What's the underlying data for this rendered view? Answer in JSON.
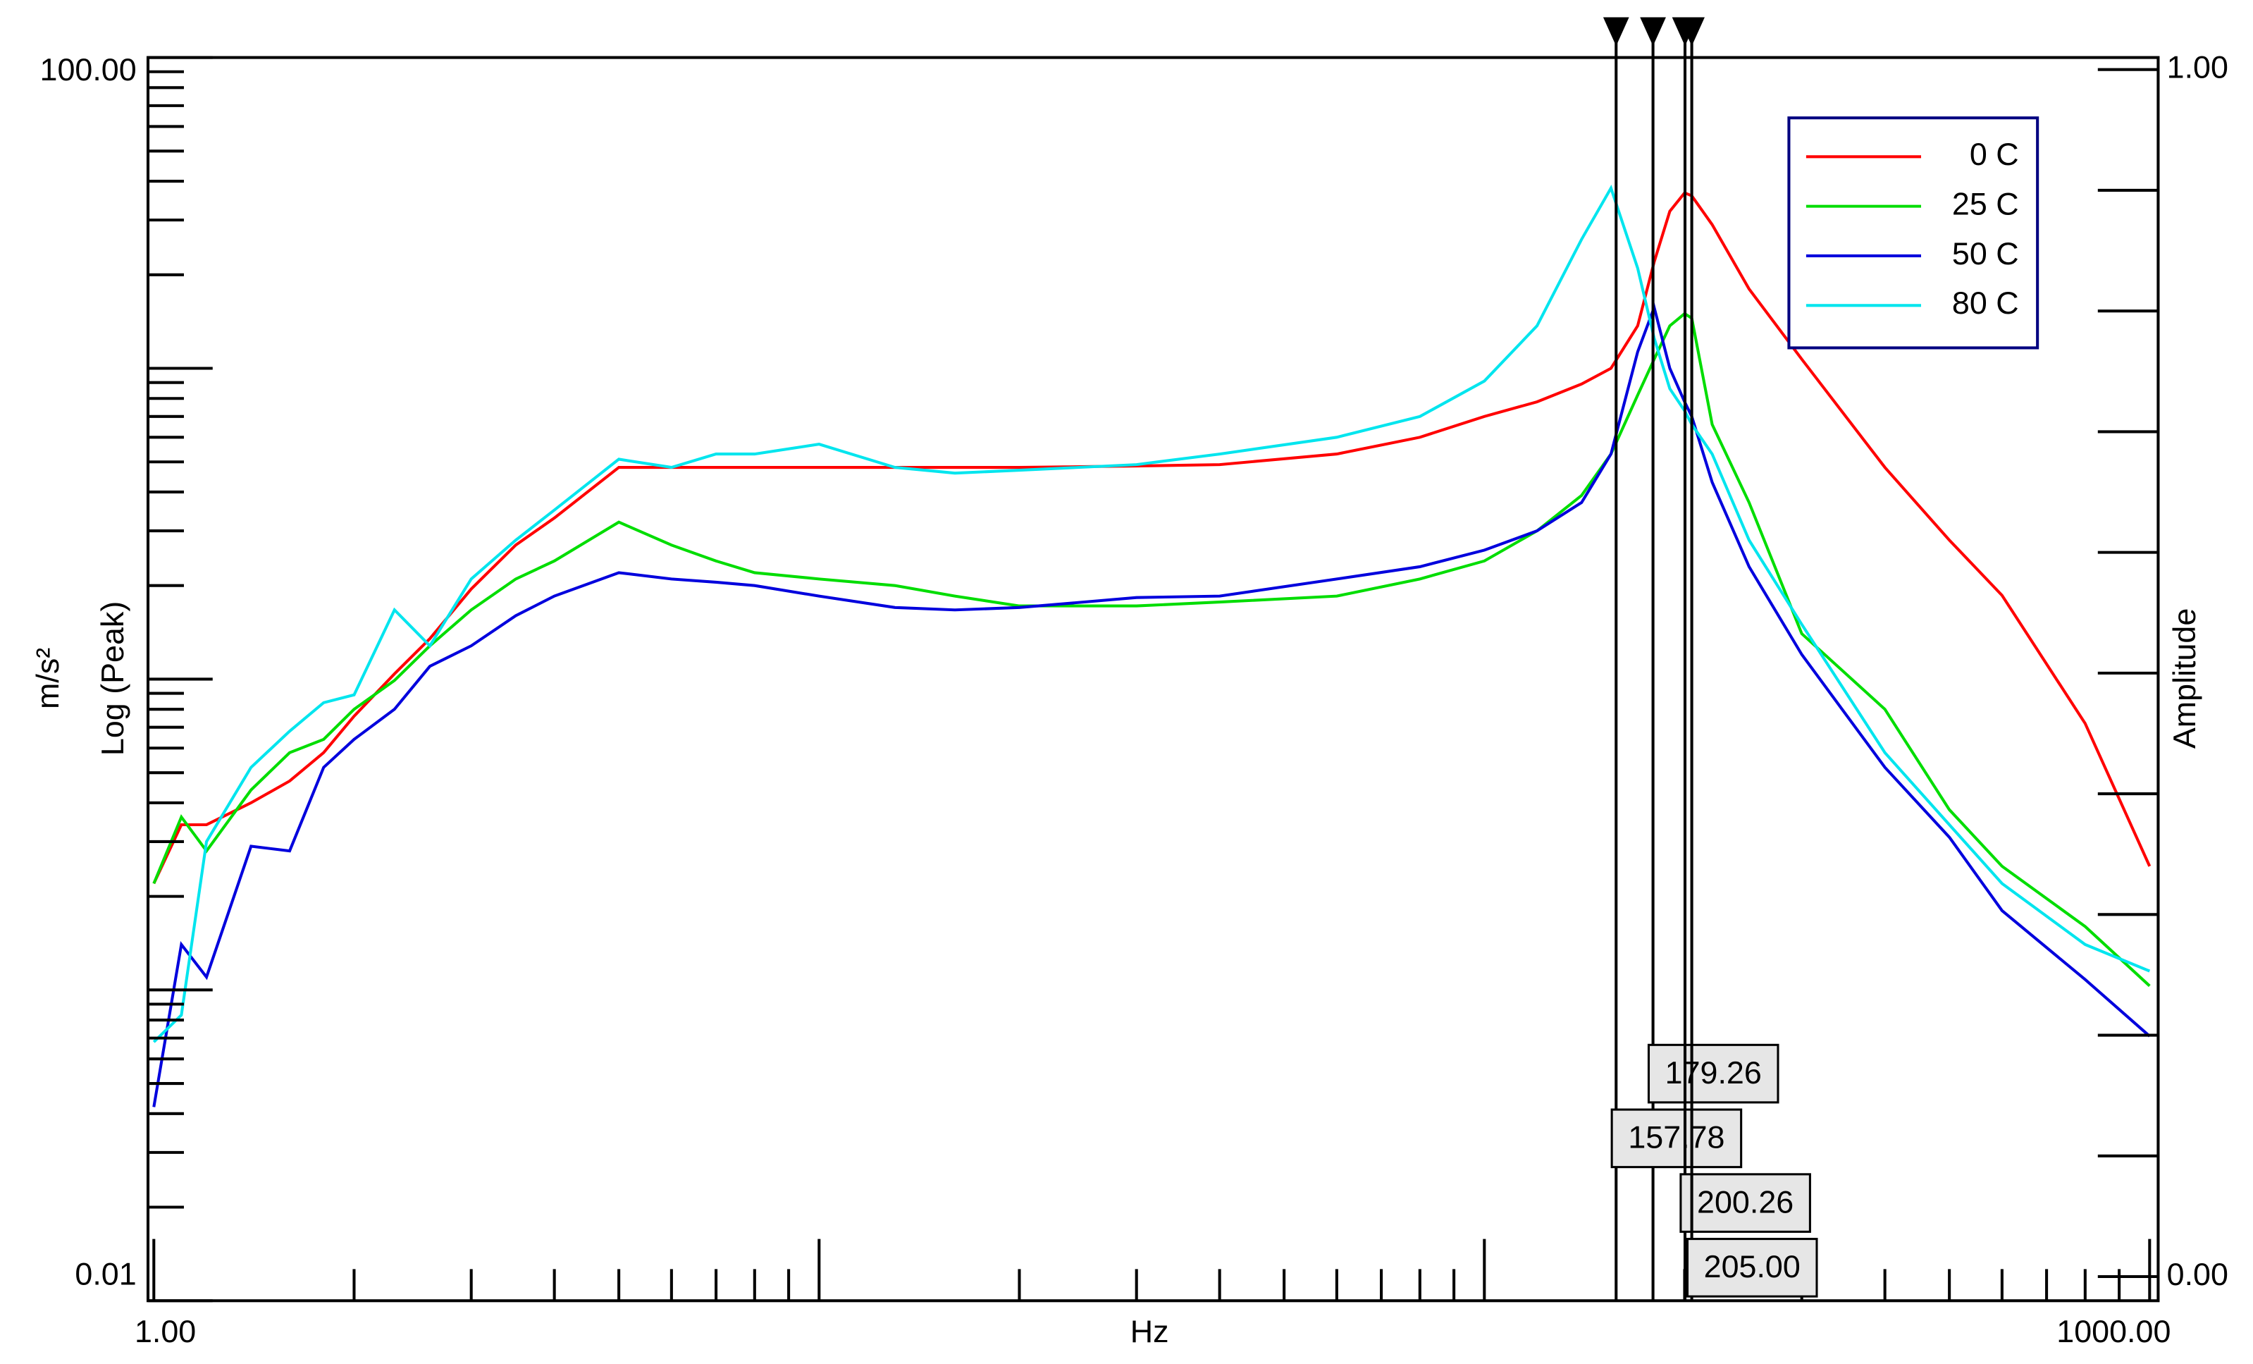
{
  "chart_data": {
    "type": "line",
    "x_label": "Hz",
    "y_label": "Log (Peak)",
    "y_unit": "m/s²",
    "y2_label": "Amplitude",
    "log_x": true,
    "log_y": true,
    "xlim": [
      0.98,
      1030
    ],
    "ylim": [
      0.01,
      100
    ],
    "y2lim": [
      -0.02,
      1.01
    ],
    "xticks": [
      {
        "value": 1,
        "label": "1.00"
      },
      {
        "value": 1000,
        "label": "1000.00"
      }
    ],
    "xmajorticks": [
      10,
      100
    ],
    "xminorticks": [
      2,
      3,
      4,
      5,
      6,
      7,
      8,
      9,
      20,
      30,
      40,
      50,
      60,
      70,
      80,
      90,
      200,
      300,
      400,
      500,
      600,
      700,
      800,
      900
    ],
    "yticks": [
      {
        "value": 0.01,
        "label": "0.01"
      },
      {
        "value": 100,
        "label": "100.00"
      }
    ],
    "ymajorticks": [
      0.1,
      1,
      10
    ],
    "yminorticks": [
      0.02,
      0.03,
      0.04,
      0.05,
      0.06,
      0.07,
      0.08,
      0.09,
      0.2,
      0.3,
      0.4,
      0.5,
      0.6,
      0.7,
      0.8,
      0.9,
      2,
      3,
      4,
      5,
      6,
      7,
      8,
      9,
      20,
      30,
      40,
      50,
      60,
      70,
      80,
      90
    ],
    "y2ticks": [
      {
        "value": 0,
        "label": "0.00"
      },
      {
        "value": 1,
        "label": "1.00"
      }
    ],
    "y2minorticks": [
      0.1,
      0.2,
      0.3,
      0.4,
      0.5,
      0.6,
      0.7,
      0.8,
      0.9
    ],
    "legend": "upper right",
    "x": [
      1,
      1.1,
      1.2,
      1.4,
      1.6,
      1.8,
      2,
      2.3,
      2.6,
      3,
      3.5,
      4,
      5,
      6,
      7,
      8,
      10,
      13,
      16,
      20,
      30,
      40,
      60,
      80,
      100,
      120,
      140,
      155,
      170,
      180,
      190,
      200,
      205,
      220,
      250,
      300,
      400,
      500,
      600,
      800,
      1000
    ],
    "series": [
      {
        "name": "0 C",
        "color": "#ff0000",
        "values": [
          0.22,
          0.34,
          0.34,
          0.4,
          0.47,
          0.58,
          0.76,
          1.04,
          1.35,
          1.95,
          2.7,
          3.3,
          4.8,
          4.8,
          4.8,
          4.8,
          4.8,
          4.8,
          4.8,
          4.8,
          4.85,
          4.9,
          5.3,
          6.0,
          7.0,
          7.8,
          8.9,
          10,
          13.7,
          22,
          32,
          36.7,
          35.9,
          29,
          18,
          10.7,
          4.8,
          2.8,
          1.86,
          0.72,
          0.25
        ]
      },
      {
        "name": "25 C",
        "color": "#00dd00",
        "values": [
          0.22,
          0.36,
          0.28,
          0.44,
          0.58,
          0.64,
          0.8,
          0.99,
          1.28,
          1.67,
          2.1,
          2.4,
          3.2,
          2.7,
          2.4,
          2.2,
          2.1,
          2.0,
          1.85,
          1.72,
          1.72,
          1.77,
          1.85,
          2.1,
          2.4,
          3.0,
          3.9,
          5.3,
          8.2,
          10.7,
          13.7,
          15,
          14.5,
          6.6,
          3.7,
          1.4,
          0.8,
          0.38,
          0.25,
          0.16,
          0.103
        ]
      },
      {
        "name": "50 C",
        "color": "#0000dd",
        "values": [
          0.042,
          0.14,
          0.11,
          0.29,
          0.28,
          0.52,
          0.64,
          0.8,
          1.1,
          1.28,
          1.6,
          1.85,
          2.2,
          2.1,
          2.05,
          2.0,
          1.85,
          1.7,
          1.67,
          1.7,
          1.83,
          1.85,
          2.1,
          2.3,
          2.6,
          3.0,
          3.7,
          5.3,
          11.3,
          15.7,
          10,
          7.8,
          7.0,
          4.3,
          2.3,
          1.2,
          0.52,
          0.31,
          0.18,
          0.108,
          0.071
        ]
      },
      {
        "name": "80 C",
        "color": "#00e5ee",
        "values": [
          0.068,
          0.083,
          0.3,
          0.52,
          0.68,
          0.84,
          0.89,
          1.67,
          1.28,
          2.1,
          2.8,
          3.5,
          5.1,
          4.8,
          5.3,
          5.3,
          5.7,
          4.8,
          4.6,
          4.7,
          4.9,
          5.3,
          6.0,
          7.0,
          9.1,
          13.7,
          26,
          38,
          21,
          12.5,
          8.6,
          7.3,
          6.6,
          5.3,
          2.8,
          1.5,
          0.58,
          0.34,
          0.22,
          0.14,
          0.115
        ]
      }
    ],
    "markers": [
      {
        "value": 179.26,
        "label": "179.26"
      },
      {
        "value": 157.78,
        "label": "157.78"
      },
      {
        "value": 200.26,
        "label": "200.26"
      },
      {
        "value": 205,
        "label": "205.00"
      }
    ]
  }
}
